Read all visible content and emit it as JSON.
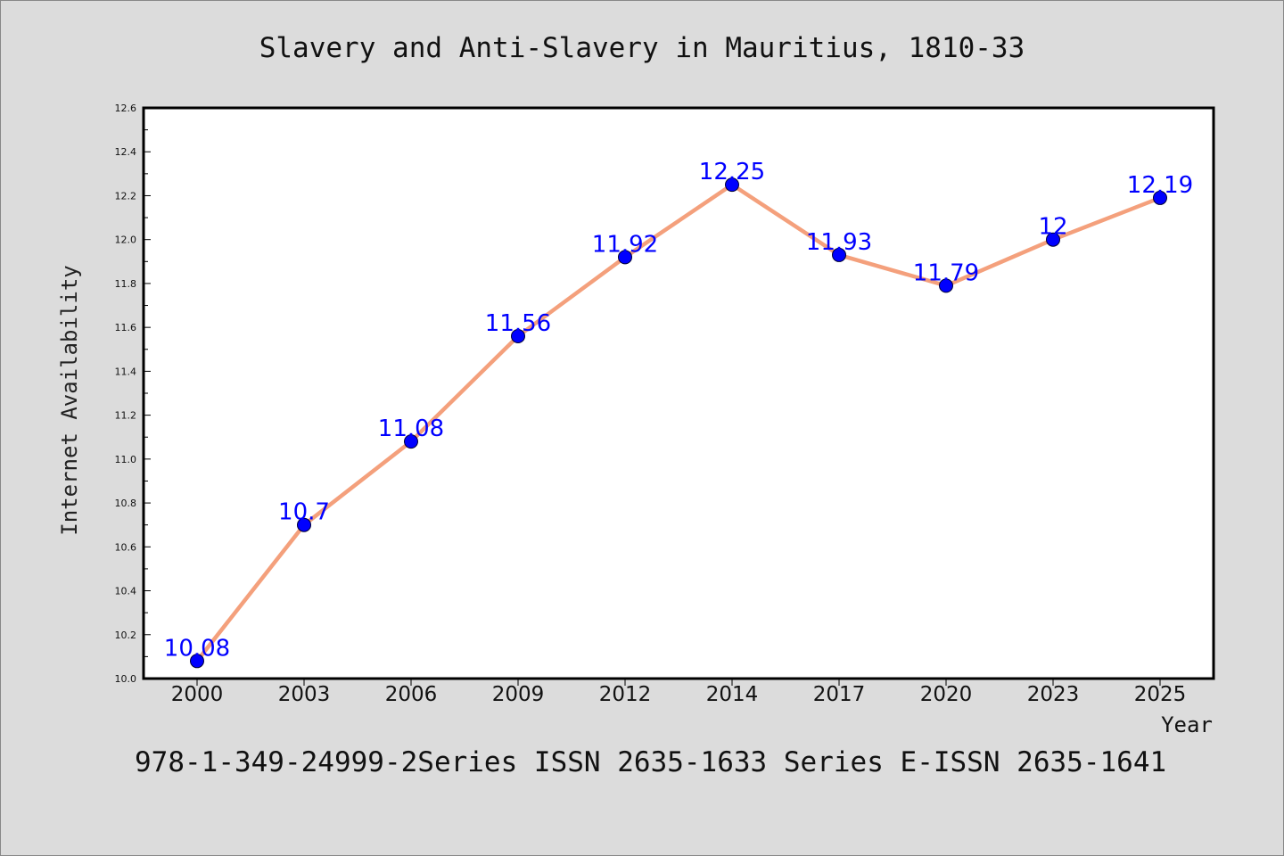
{
  "chart_data": {
    "type": "line",
    "title": "Slavery and Anti-Slavery in Mauritius, 1810-33",
    "xlabel": "Year",
    "ylabel": "Internet Availability",
    "categories": [
      "2000",
      "2003",
      "2006",
      "2009",
      "2012",
      "2014",
      "2017",
      "2020",
      "2023",
      "2025"
    ],
    "values": [
      10.08,
      10.7,
      11.08,
      11.56,
      11.92,
      12.25,
      11.93,
      11.79,
      12,
      12.19
    ],
    "data_labels": [
      "10.08",
      "10.7",
      "11.08",
      "11.56",
      "11.92",
      "12.25",
      "11.93",
      "11.79",
      "12",
      "12.19"
    ],
    "ylim": [
      10.0,
      12.6
    ],
    "y_ticks": [
      "10.0",
      "10.2",
      "10.4",
      "10.6",
      "10.8",
      "11.0",
      "11.2",
      "11.4",
      "11.6",
      "11.8",
      "12.0",
      "12.2",
      "12.4",
      "12.6"
    ],
    "grid": false,
    "line_color": "#f4a07c",
    "marker_color": "#0000ff",
    "label_color": "#0000ff",
    "background_color": "#dcdcdc",
    "plot_background": "#ffffff"
  },
  "footer_text": "978-1-349-24999-2Series ISSN 2635-1633 Series E-ISSN 2635-1641"
}
